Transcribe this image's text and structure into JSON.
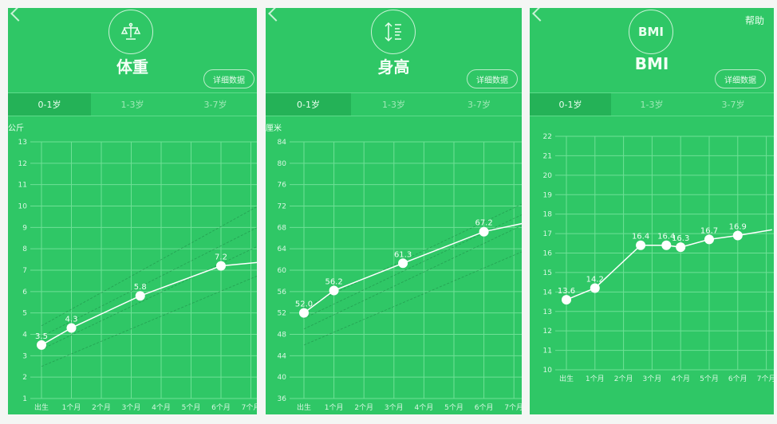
{
  "colors": {
    "background": "#2fc766",
    "active_tab": "#24b257",
    "grid": "#6fe096",
    "line": "#ffffff",
    "reference": "#1f8f48"
  },
  "panels": [
    {
      "title": "体重",
      "icon": "scale-icon",
      "icon_text": "",
      "detail_button": "详细数据",
      "help": "",
      "tabs": [
        "0-1岁",
        "1-3岁",
        "3-7岁"
      ],
      "active_tab": 0,
      "unit": "公斤"
    },
    {
      "title": "身高",
      "icon": "height-ruler-icon",
      "icon_text": "",
      "detail_button": "详细数据",
      "help": "",
      "tabs": [
        "0-1岁",
        "1-3岁",
        "3-7岁"
      ],
      "active_tab": 0,
      "unit": "厘米"
    },
    {
      "title": "BMI",
      "icon": "bmi-icon",
      "icon_text": "BMI",
      "detail_button": "详细数据",
      "help": "帮助",
      "tabs": [
        "0-1岁",
        "1-3岁",
        "3-7岁"
      ],
      "active_tab": 0,
      "unit": ""
    }
  ],
  "chart_data": [
    {
      "type": "line",
      "title": "体重",
      "ylabel": "公斤",
      "ylim": [
        1,
        13
      ],
      "yticks": [
        1,
        2,
        3,
        4,
        5,
        6,
        7,
        8,
        9,
        10,
        11,
        12,
        13
      ],
      "xticks": [
        "出生",
        "1个月",
        "2个月",
        "3个月",
        "4个月",
        "5个月",
        "6个月",
        "7个月"
      ],
      "grid": true,
      "series": [
        {
          "x": [
            0,
            1,
            3.3,
            6,
            7.5
          ],
          "y": [
            3.5,
            4.3,
            5.8,
            7.2,
            7.4
          ],
          "labels": [
            "3.5",
            "4.3",
            "5.8",
            "7.2",
            ""
          ]
        }
      ],
      "reference": [
        {
          "x": [
            0,
            7.5
          ],
          "y": [
            2.5,
            6.9
          ]
        },
        {
          "x": [
            0,
            7.5
          ],
          "y": [
            3.3,
            8.3
          ]
        },
        {
          "x": [
            0,
            7.5
          ],
          "y": [
            3.9,
            9.2
          ]
        },
        {
          "x": [
            0,
            7.5
          ],
          "y": [
            4.4,
            10.2
          ]
        }
      ]
    },
    {
      "type": "line",
      "title": "身高",
      "ylabel": "厘米",
      "ylim": [
        36,
        84
      ],
      "yticks": [
        36,
        40,
        44,
        48,
        52,
        56,
        60,
        64,
        68,
        72,
        76,
        80,
        84
      ],
      "xticks": [
        "出生",
        "1个月",
        "2个月",
        "3个月",
        "4个月",
        "5个月",
        "6个月",
        "7个月"
      ],
      "grid": true,
      "series": [
        {
          "x": [
            0,
            1,
            3.3,
            6,
            7.5
          ],
          "y": [
            52.0,
            56.2,
            61.3,
            67.2,
            69.0
          ],
          "labels": [
            "52.0",
            "56.2",
            "61.3",
            "67.2",
            ""
          ]
        }
      ],
      "reference": [
        {
          "x": [
            0,
            7.5
          ],
          "y": [
            46,
            64
          ]
        },
        {
          "x": [
            0,
            7.5
          ],
          "y": [
            49,
            69
          ]
        },
        {
          "x": [
            0,
            7.5
          ],
          "y": [
            51,
            71
          ]
        },
        {
          "x": [
            0,
            7.5
          ],
          "y": [
            53,
            73
          ]
        }
      ]
    },
    {
      "type": "line",
      "title": "BMI",
      "ylabel": "",
      "ylim": [
        10,
        22
      ],
      "yticks": [
        10,
        11,
        12,
        13,
        14,
        15,
        16,
        17,
        18,
        19,
        20,
        21,
        22
      ],
      "xticks": [
        "出生",
        "1个月",
        "2个月",
        "3个月",
        "4个月",
        "5个月",
        "6个月",
        "7个月"
      ],
      "grid": true,
      "series": [
        {
          "x": [
            0,
            1,
            2.6,
            3.5,
            4,
            5,
            6,
            7.2
          ],
          "y": [
            13.6,
            14.2,
            16.4,
            16.4,
            16.3,
            16.7,
            16.9,
            17.2
          ],
          "labels": [
            "13.6",
            "14.2",
            "16.4",
            "16.4",
            "16.3",
            "16.7",
            "16.9",
            ""
          ]
        }
      ],
      "reference": []
    }
  ]
}
